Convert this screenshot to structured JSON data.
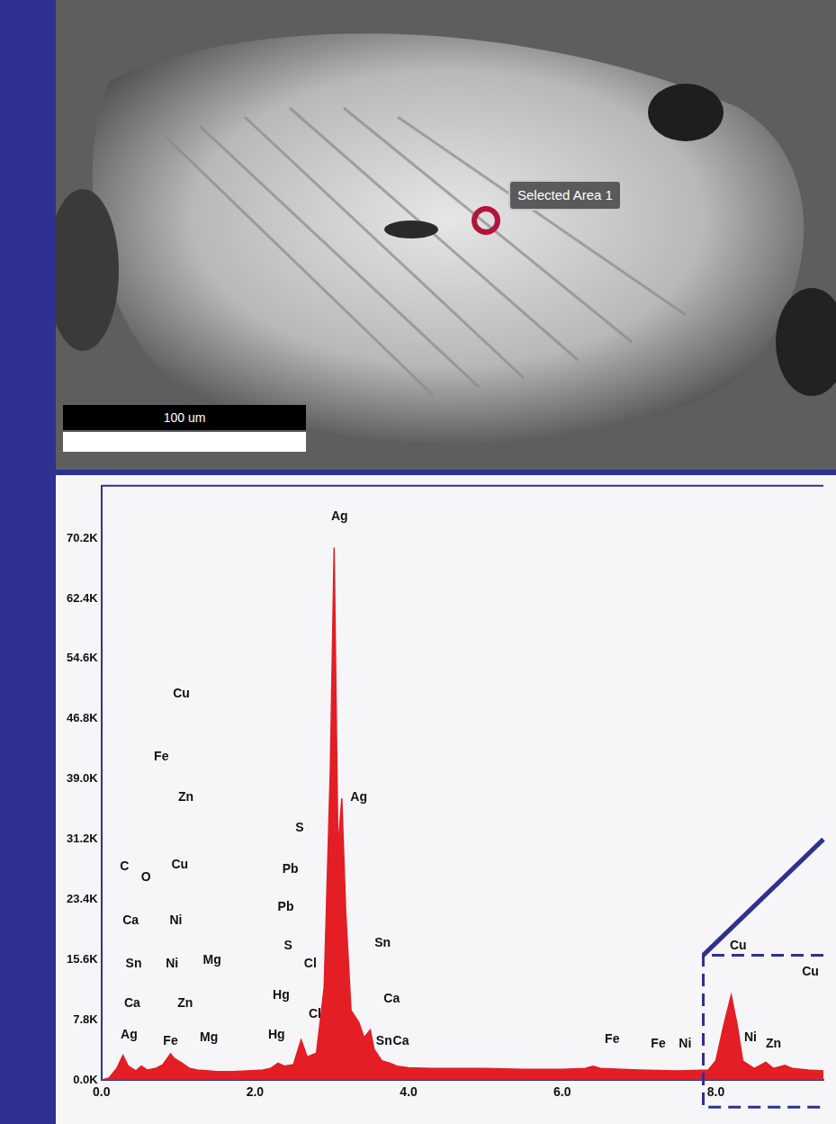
{
  "image": {
    "annotation": "Selected Area 1",
    "scale_bar": "100 um"
  },
  "chart_data": {
    "type": "line",
    "color": "#e31e24",
    "x": [
      0.0,
      0.1,
      0.2,
      0.28,
      0.35,
      0.45,
      0.52,
      0.6,
      0.7,
      0.8,
      0.9,
      0.95,
      1.05,
      1.15,
      1.25,
      1.4,
      1.5,
      1.7,
      1.9,
      2.1,
      2.2,
      2.3,
      2.38,
      2.5,
      2.6,
      2.68,
      2.8,
      2.9,
      2.98,
      3.03,
      3.08,
      3.13,
      3.18,
      3.25,
      3.35,
      3.42,
      3.5,
      3.55,
      3.65,
      3.75,
      3.85,
      4.0,
      4.3,
      4.6,
      5.0,
      5.5,
      6.0,
      6.3,
      6.4,
      6.5,
      7.0,
      7.5,
      7.9,
      8.0,
      8.1,
      8.2,
      8.28,
      8.35,
      8.5,
      8.65,
      8.75,
      8.9,
      9.0,
      9.2,
      9.4
    ],
    "values": [
      0,
      300,
      1500,
      3200,
      1800,
      1200,
      1800,
      1300,
      1500,
      2000,
      3400,
      2800,
      2200,
      1500,
      1300,
      1200,
      1100,
      1100,
      1200,
      1300,
      1500,
      2200,
      1800,
      2000,
      5200,
      3000,
      3500,
      12000,
      40000,
      69000,
      30000,
      36500,
      22000,
      9000,
      7500,
      5500,
      6500,
      4000,
      2500,
      2200,
      1800,
      1600,
      1500,
      1500,
      1500,
      1400,
      1400,
      1500,
      1800,
      1500,
      1300,
      1200,
      1300,
      2500,
      7000,
      11000,
      7000,
      2500,
      1500,
      2300,
      1500,
      1900,
      1500,
      1300,
      1200
    ],
    "xlim": [
      0,
      9.4
    ],
    "xticks": [
      {
        "value": 0,
        "label": "0.0"
      },
      {
        "value": 2,
        "label": "2.0"
      },
      {
        "value": 4,
        "label": "4.0"
      },
      {
        "value": 6,
        "label": "6.0"
      },
      {
        "value": 8,
        "label": "8.0"
      }
    ],
    "ylim": [
      0,
      77000
    ],
    "yticks": [
      {
        "value": 0,
        "label": "0.0K"
      },
      {
        "value": 7800,
        "label": "7.8K"
      },
      {
        "value": 15600,
        "label": "15.6K"
      },
      {
        "value": 23400,
        "label": "23.4K"
      },
      {
        "value": 31200,
        "label": "31.2K"
      },
      {
        "value": 39000,
        "label": "39.0K"
      },
      {
        "value": 46800,
        "label": "46.8K"
      },
      {
        "value": 54600,
        "label": "54.6K"
      },
      {
        "value": 62400,
        "label": "62.4K"
      },
      {
        "value": 70200,
        "label": "70.2K"
      }
    ],
    "grid": false,
    "annotations": [
      {
        "text": "Ag",
        "x": 3.1,
        "y": 73000
      },
      {
        "text": "Ag",
        "x": 3.35,
        "y": 36600
      },
      {
        "text": "Cu",
        "x": 1.04,
        "y": 50000
      },
      {
        "text": "Fe",
        "x": 0.78,
        "y": 41900
      },
      {
        "text": "Zn",
        "x": 1.1,
        "y": 36600
      },
      {
        "text": "C",
        "x": 0.3,
        "y": 27600
      },
      {
        "text": "O",
        "x": 0.58,
        "y": 26200
      },
      {
        "text": "Cu",
        "x": 1.02,
        "y": 27900
      },
      {
        "text": "Ca",
        "x": 0.38,
        "y": 20600
      },
      {
        "text": "Ni",
        "x": 0.97,
        "y": 20600
      },
      {
        "text": "Sn",
        "x": 0.42,
        "y": 15100
      },
      {
        "text": "Ni",
        "x": 0.92,
        "y": 15100
      },
      {
        "text": "Mg",
        "x": 1.44,
        "y": 15500
      },
      {
        "text": "Ca",
        "x": 0.4,
        "y": 9900
      },
      {
        "text": "Zn",
        "x": 1.09,
        "y": 9900
      },
      {
        "text": "Ag",
        "x": 0.36,
        "y": 5800
      },
      {
        "text": "Fe",
        "x": 0.9,
        "y": 5000
      },
      {
        "text": "Mg",
        "x": 1.4,
        "y": 5500
      },
      {
        "text": "S",
        "x": 2.58,
        "y": 32600
      },
      {
        "text": "Pb",
        "x": 2.46,
        "y": 27300
      },
      {
        "text": "Pb",
        "x": 2.4,
        "y": 22400
      },
      {
        "text": "S",
        "x": 2.43,
        "y": 17400
      },
      {
        "text": "Cl",
        "x": 2.72,
        "y": 15100
      },
      {
        "text": "Hg",
        "x": 2.34,
        "y": 11000
      },
      {
        "text": "Hg",
        "x": 2.28,
        "y": 5800
      },
      {
        "text": "Cl",
        "x": 2.78,
        "y": 8500
      },
      {
        "text": "Sn",
        "x": 3.66,
        "y": 17700
      },
      {
        "text": "Ca",
        "x": 3.78,
        "y": 10500
      },
      {
        "text": "Sn",
        "x": 3.68,
        "y": 5000
      },
      {
        "text": "Ca",
        "x": 3.9,
        "y": 5000
      },
      {
        "text": "Fe",
        "x": 6.65,
        "y": 5200
      },
      {
        "text": "Fe",
        "x": 7.25,
        "y": 4700
      },
      {
        "text": "Ni",
        "x": 7.6,
        "y": 4700
      },
      {
        "text": "Cu",
        "x": 8.29,
        "y": 17400
      },
      {
        "text": "Cu",
        "x": 9.23,
        "y": 14000
      },
      {
        "text": "Ni",
        "x": 8.45,
        "y": 5500
      },
      {
        "text": "Zn",
        "x": 8.75,
        "y": 4700
      }
    ]
  }
}
